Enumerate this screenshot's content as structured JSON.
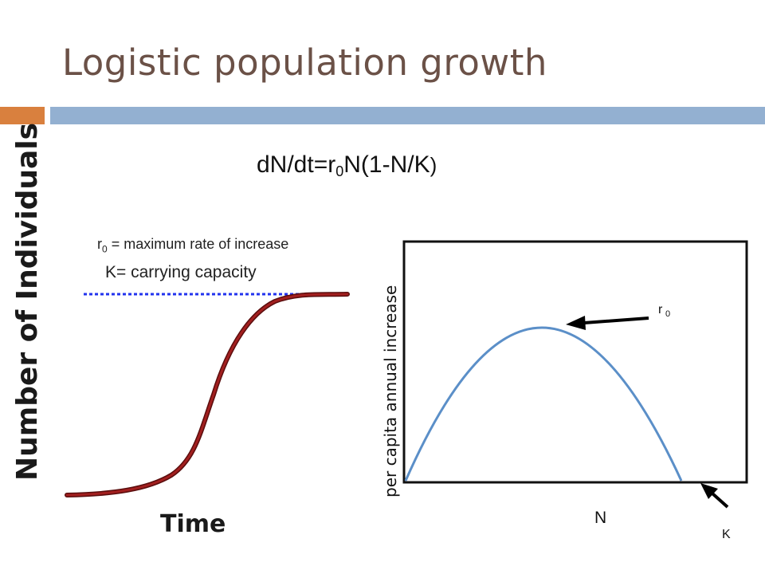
{
  "slide": {
    "title": "Logistic population growth",
    "colors": {
      "title": "#6b5147",
      "accent_bar": "#d9803e",
      "main_bar": "#93b0d1"
    }
  },
  "equation": {
    "part1": "dN/dt=r",
    "sub": "0",
    "part2": "N(1-N/K",
    "part3": ")"
  },
  "notes": {
    "r0_symbol": "r",
    "r0_sub": "0",
    "r0_text": " = maximum rate of increase",
    "k_text": "K= carrying capacity"
  },
  "left_graph": {
    "ylabel": "Number of Individuals",
    "xlabel": "Time",
    "colors": {
      "curve": "#8b1a1a",
      "carrying_line": "#2233ee",
      "axis": "#222222"
    }
  },
  "right_graph": {
    "ylabel": "per capita annual increase",
    "xlabel": "N",
    "peak_label": "r",
    "peak_label_sub": "0",
    "k_label": "K",
    "colors": {
      "curve": "#5b8fc8",
      "frame": "#111111"
    }
  }
}
